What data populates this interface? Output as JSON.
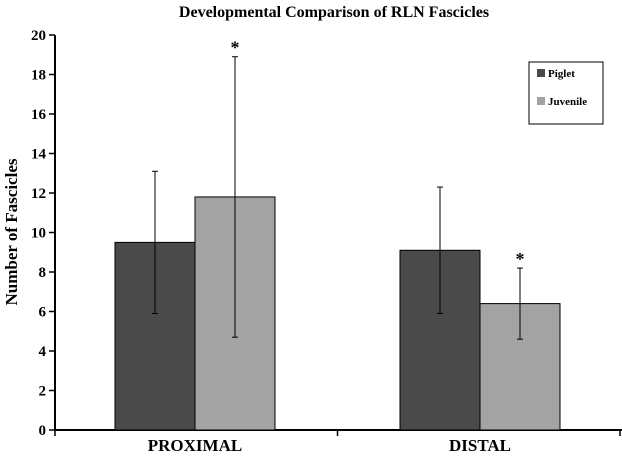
{
  "chart_data": {
    "type": "bar",
    "title": "Developmental Comparison of RLN Fascicles",
    "xlabel": "",
    "ylabel": "Number of Fascicles",
    "ylim": [
      0,
      20
    ],
    "yticks": [
      0,
      2,
      4,
      6,
      8,
      10,
      12,
      14,
      16,
      18,
      20
    ],
    "grid": false,
    "legend_position": "top-right",
    "categories": [
      "PROXIMAL",
      "DISTAL"
    ],
    "series": [
      {
        "name": "Piglet",
        "color": "#4a4a4a",
        "values": [
          9.5,
          9.1
        ],
        "error_low": [
          5.9,
          5.9
        ],
        "error_high": [
          13.1,
          12.3
        ]
      },
      {
        "name": "Juvenile",
        "color": "#a3a3a3",
        "values": [
          11.8,
          6.4
        ],
        "error_low": [
          4.7,
          4.6
        ],
        "error_high": [
          18.9,
          8.2
        ]
      }
    ],
    "annotations": [
      {
        "text": "*",
        "category": "PROXIMAL",
        "series": "Juvenile",
        "y": 18.9
      },
      {
        "text": "*",
        "category": "DISTAL",
        "series": "Juvenile",
        "y": 8.2
      }
    ]
  }
}
